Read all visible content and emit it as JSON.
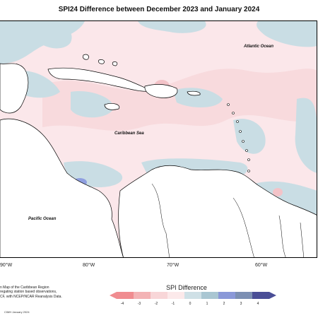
{
  "title": "SPI24 Difference between December 2023 and January 2024",
  "labels": {
    "atlantic": "Atlantic Ocean",
    "caribbean": "Caribbean Sea",
    "pacific": "Pacific Ocean"
  },
  "longitude_ticks": [
    "90°W",
    "80°W",
    "70°W",
    "60°W"
  ],
  "info_lines": [
    "n Map of the Caribbean Region",
    "regating station based observations,",
    "CF, with NCEP/NCAR Reanalysis Data."
  ],
  "credit": "CIMH January 2024",
  "legend": {
    "title": "SPI Difference",
    "ticks": [
      "-4",
      "-3",
      "-2",
      "-1",
      "0",
      "1",
      "2",
      "3",
      "4"
    ],
    "colors": [
      "#f08c90",
      "#f3b3b5",
      "#f8d6d8",
      "#fce9ea",
      "#cfe0e6",
      "#a9c6d2",
      "#8a98d8",
      "#7c8fb3",
      "#4a4e96"
    ]
  },
  "map_colors": {
    "land": "#ffffff",
    "wet": "#c9dde4",
    "dry_light": "#fbe7ea",
    "dry_mid": "#f3c3c8",
    "wet_strong": "#8f9fe0",
    "coast": "#000000"
  }
}
